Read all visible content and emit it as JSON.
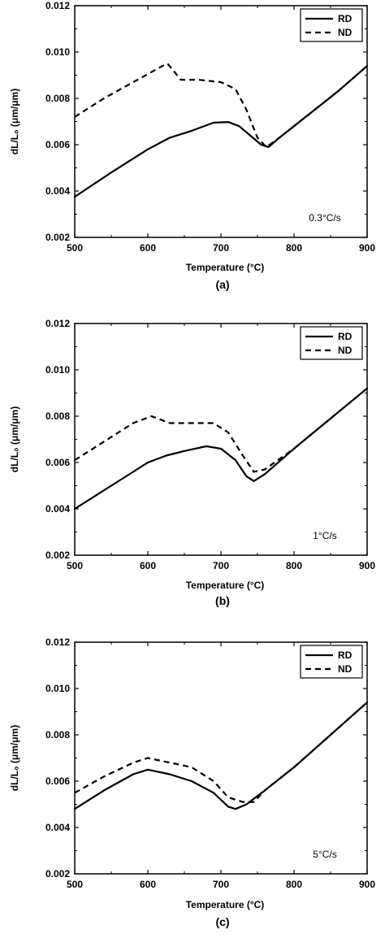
{
  "chart_data": [
    {
      "type": "line",
      "panel_label": "(a)",
      "xlabel": "Temperature (°C)",
      "ylabel": "dL/L₀ (μm/μm)",
      "xlim": [
        500,
        900
      ],
      "ylim": [
        0.002,
        0.012
      ],
      "x_ticks": [
        500,
        600,
        700,
        800,
        900
      ],
      "y_ticks": [
        "0.002",
        "0.004",
        "0.006",
        "0.008",
        "0.010",
        "0.012"
      ],
      "annotation": "0.3°C/s",
      "legend_position": "top-right",
      "grid": false,
      "series": [
        {
          "name": "RD",
          "style": "solid",
          "x": [
            500,
            550,
            600,
            630,
            660,
            690,
            710,
            725,
            740,
            755,
            765,
            780,
            820,
            860,
            900
          ],
          "y": [
            0.00375,
            0.0048,
            0.0058,
            0.0063,
            0.0066,
            0.00695,
            0.00698,
            0.0068,
            0.0064,
            0.006,
            0.0059,
            0.0063,
            0.0073,
            0.0083,
            0.0094
          ]
        },
        {
          "name": "ND",
          "style": "dashed",
          "x": [
            500,
            540,
            580,
            620,
            627,
            635,
            645,
            670,
            700,
            720,
            735,
            750,
            762,
            780,
            820,
            860,
            900
          ],
          "y": [
            0.0072,
            0.008,
            0.0087,
            0.0094,
            0.0095,
            0.0092,
            0.0088,
            0.0088,
            0.0087,
            0.0084,
            0.0075,
            0.0063,
            0.0059,
            0.0063,
            0.0073,
            0.0083,
            0.0094
          ]
        }
      ]
    },
    {
      "type": "line",
      "panel_label": "(b)",
      "xlabel": "Temperature (°C)",
      "ylabel": "dL/L₀ (μm/μm)",
      "xlim": [
        500,
        900
      ],
      "ylim": [
        0.002,
        0.012
      ],
      "x_ticks": [
        500,
        600,
        700,
        800,
        900
      ],
      "y_ticks": [
        "0.002",
        "0.004",
        "0.006",
        "0.008",
        "0.010",
        "0.012"
      ],
      "annotation": "1°C/s",
      "legend_position": "top-right",
      "grid": false,
      "series": [
        {
          "name": "RD",
          "style": "solid",
          "x": [
            500,
            550,
            600,
            625,
            650,
            680,
            700,
            720,
            735,
            745,
            760,
            800,
            850,
            900
          ],
          "y": [
            0.004,
            0.005,
            0.006,
            0.0063,
            0.0065,
            0.0067,
            0.0066,
            0.0061,
            0.0054,
            0.0052,
            0.0055,
            0.0066,
            0.0079,
            0.0092
          ]
        },
        {
          "name": "ND",
          "style": "dashed",
          "x": [
            500,
            550,
            580,
            605,
            630,
            660,
            690,
            710,
            730,
            745,
            760,
            800,
            850,
            900
          ],
          "y": [
            0.0061,
            0.0071,
            0.0077,
            0.008,
            0.0077,
            0.0077,
            0.0077,
            0.0073,
            0.0063,
            0.0056,
            0.0057,
            0.0066,
            0.0079,
            0.0092
          ]
        }
      ]
    },
    {
      "type": "line",
      "panel_label": "(c)",
      "xlabel": "Temperature (°C)",
      "ylabel": "dL/L₀ (μm/μm)",
      "xlim": [
        500,
        900
      ],
      "ylim": [
        0.002,
        0.012
      ],
      "x_ticks": [
        500,
        600,
        700,
        800,
        900
      ],
      "y_ticks": [
        "0.002",
        "0.004",
        "0.006",
        "0.008",
        "0.010",
        "0.012"
      ],
      "annotation": "5°C/s",
      "legend_position": "top-right",
      "grid": false,
      "series": [
        {
          "name": "RD",
          "style": "solid",
          "x": [
            500,
            540,
            580,
            600,
            630,
            660,
            690,
            710,
            720,
            735,
            760,
            800,
            850,
            900
          ],
          "y": [
            0.0048,
            0.0056,
            0.0063,
            0.0065,
            0.0063,
            0.006,
            0.0055,
            0.0049,
            0.0048,
            0.005,
            0.0056,
            0.0066,
            0.008,
            0.0094
          ]
        },
        {
          "name": "ND",
          "style": "dashed",
          "x": [
            500,
            540,
            580,
            600,
            630,
            660,
            690,
            710,
            730,
            745,
            760,
            800,
            850,
            900
          ],
          "y": [
            0.0055,
            0.0062,
            0.0068,
            0.007,
            0.0068,
            0.0066,
            0.006,
            0.0053,
            0.0051,
            0.0051,
            0.0056,
            0.0066,
            0.008,
            0.0094
          ]
        }
      ]
    }
  ]
}
